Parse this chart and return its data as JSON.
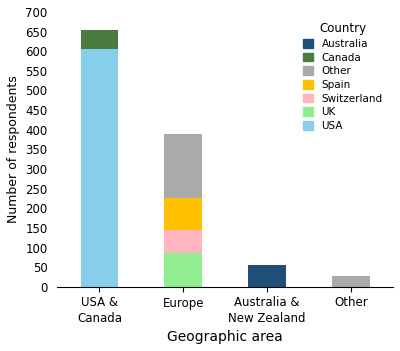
{
  "categories": [
    "USA &\nCanada",
    "Europe",
    "Australia &\nNew Zealand",
    "Other"
  ],
  "series": {
    "USA": [
      605,
      0,
      0,
      0
    ],
    "Canada": [
      48,
      0,
      0,
      0
    ],
    "UK": [
      0,
      85,
      0,
      0
    ],
    "Switzerland": [
      0,
      60,
      0,
      0
    ],
    "Spain": [
      0,
      80,
      0,
      0
    ],
    "Other": [
      0,
      165,
      0,
      27
    ],
    "Australia": [
      0,
      0,
      55,
      0
    ]
  },
  "colors": {
    "USA": "#87CEEB",
    "Canada": "#4a7c3f",
    "UK": "#90EE90",
    "Switzerland": "#FFB6C1",
    "Spain": "#FFC000",
    "Other": "#AAAAAA",
    "Australia": "#1F4E79"
  },
  "stack_order": [
    "USA",
    "Canada",
    "UK",
    "Switzerland",
    "Spain",
    "Other",
    "Australia"
  ],
  "legend_order": [
    "Australia",
    "Canada",
    "Other",
    "Spain",
    "Switzerland",
    "UK",
    "USA"
  ],
  "legend_title": "Country",
  "xlabel": "Geographic area",
  "ylabel": "Number of respondents",
  "ylim": [
    0,
    700
  ],
  "yticks": [
    0,
    50,
    100,
    150,
    200,
    250,
    300,
    350,
    400,
    450,
    500,
    550,
    600,
    650,
    700
  ]
}
